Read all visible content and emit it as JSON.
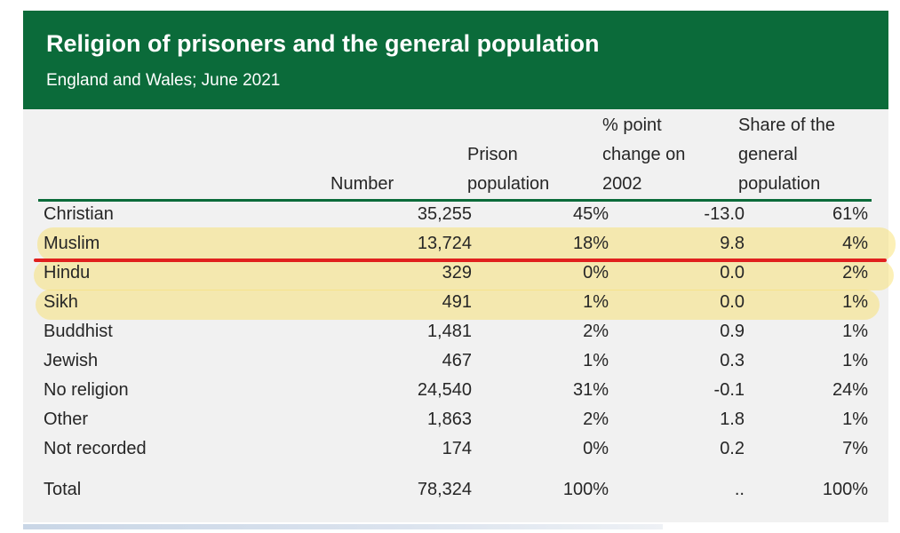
{
  "header": {
    "title": "Religion of prisoners and the general population",
    "subtitle": "England and Wales; June 2021"
  },
  "columns": {
    "number": [
      "Number"
    ],
    "prison_population": [
      "Prison",
      "population"
    ],
    "change": [
      "% point",
      "change on",
      "2002"
    ],
    "share": [
      "Share of the",
      "general",
      "population"
    ]
  },
  "rows": [
    {
      "religion": "Christian",
      "number": "35,255",
      "prison_population": "45%",
      "change": "-13.0",
      "share": "61%"
    },
    {
      "religion": "Muslim",
      "number": "13,724",
      "prison_population": "18%",
      "change": "9.8",
      "share": "4%"
    },
    {
      "religion": "Hindu",
      "number": "329",
      "prison_population": "0%",
      "change": "0.0",
      "share": "2%"
    },
    {
      "religion": "Sikh",
      "number": "491",
      "prison_population": "1%",
      "change": "0.0",
      "share": "1%"
    },
    {
      "religion": "Buddhist",
      "number": "1,481",
      "prison_population": "2%",
      "change": "0.9",
      "share": "1%"
    },
    {
      "religion": "Jewish",
      "number": "467",
      "prison_population": "1%",
      "change": "0.3",
      "share": "1%"
    },
    {
      "religion": "No religion",
      "number": "24,540",
      "prison_population": "31%",
      "change": "-0.1",
      "share": "24%"
    },
    {
      "religion": "Other",
      "number": "1,863",
      "prison_population": "2%",
      "change": "1.8",
      "share": "1%"
    },
    {
      "religion": "Not recorded",
      "number": "174",
      "prison_population": "0%",
      "change": "0.2",
      "share": "7%"
    }
  ],
  "total": {
    "religion": "Total",
    "number": "78,324",
    "prison_population": "100%",
    "change": "..",
    "share": "100%"
  },
  "colors": {
    "header_bg": "#0b6b3a",
    "rule": "#0b6b3a",
    "highlight": "#f8de60",
    "marker_line": "#e0201e"
  }
}
